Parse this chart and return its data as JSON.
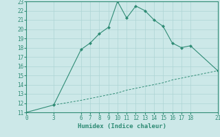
{
  "xlabel": "Humidex (Indice chaleur)",
  "line1_x": [
    0,
    3,
    6,
    7,
    8,
    9,
    10,
    11,
    12,
    13,
    14,
    15,
    16,
    17,
    18,
    21
  ],
  "line1_y": [
    11,
    11.8,
    17.8,
    18.5,
    19.5,
    20.2,
    23,
    21.2,
    22.5,
    22.0,
    21.0,
    20.3,
    18.5,
    18.0,
    18.2,
    15.5
  ],
  "line2_x": [
    3,
    6,
    7,
    8,
    9,
    10,
    11,
    12,
    13,
    14,
    15,
    16,
    17,
    18,
    21
  ],
  "line2_y": [
    11.8,
    12.3,
    12.5,
    12.7,
    12.9,
    13.1,
    13.4,
    13.6,
    13.8,
    14.0,
    14.2,
    14.5,
    14.7,
    14.9,
    15.5
  ],
  "color": "#2e8b74",
  "bg_color": "#cce8e8",
  "grid_color": "#add4d4",
  "xlim": [
    0,
    21
  ],
  "ylim": [
    11,
    23
  ],
  "xticks": [
    0,
    3,
    6,
    7,
    8,
    9,
    10,
    11,
    12,
    13,
    14,
    15,
    16,
    17,
    18,
    21
  ],
  "yticks": [
    11,
    12,
    13,
    14,
    15,
    16,
    17,
    18,
    19,
    20,
    21,
    22,
    23
  ],
  "axis_fontsize": 6.5,
  "tick_fontsize": 5.5
}
